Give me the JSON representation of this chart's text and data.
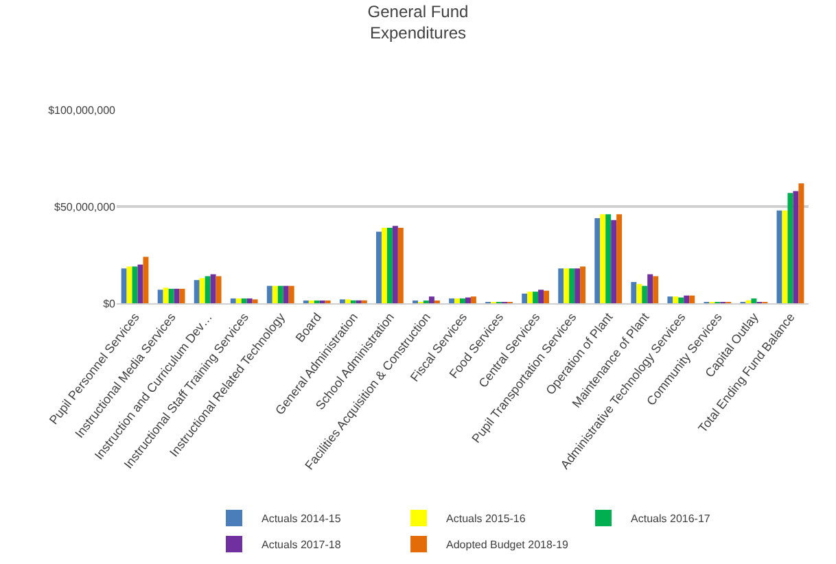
{
  "chart_data": {
    "type": "bar",
    "title": "General Fund\nExpenditures",
    "categories": [
      "Pupil Personnel Services",
      "Instructional Media Services",
      "Instruction and Curriculum Dev…",
      "Instructional Staff Training Services",
      "Instructional Related Technology",
      "Board",
      "General Administration",
      "School Administration",
      "Facilities Acquisition & Construction",
      "Fiscal Services",
      "Food Services",
      "Central Services",
      "Pupil Transportation Services",
      "Operation of Plant",
      "Maintenance of Plant",
      "Administrative Technology Services",
      "Community Services",
      "Capital Outlay",
      "Total Ending Fund Balance"
    ],
    "series": [
      {
        "name": "Actuals 2014-15",
        "color": "#4a7ebb",
        "values": [
          18000000,
          7000000,
          12000000,
          2500000,
          9000000,
          1000000,
          2000000,
          37000000,
          1000000,
          2500000,
          500000,
          5000000,
          18000000,
          44000000,
          11000000,
          3500000,
          500000,
          500000,
          48000000
        ]
      },
      {
        "name": "Actuals 2015-16",
        "color": "#ffff00",
        "values": [
          19000000,
          8000000,
          13000000,
          2500000,
          9000000,
          1000000,
          2000000,
          39000000,
          500000,
          2500000,
          500000,
          6000000,
          18000000,
          46000000,
          10000000,
          3500000,
          500000,
          1500000,
          48000000
        ]
      },
      {
        "name": "Actuals 2016-17",
        "color": "#00b050",
        "values": [
          19000000,
          7500000,
          14000000,
          2500000,
          9000000,
          1000000,
          1500000,
          39000000,
          1000000,
          2500000,
          500000,
          6000000,
          18000000,
          46000000,
          9000000,
          3000000,
          500000,
          2500000,
          57000000
        ]
      },
      {
        "name": "Actuals 2017-18",
        "color": "#7030a0",
        "values": [
          20000000,
          7500000,
          15000000,
          2500000,
          9000000,
          1000000,
          1500000,
          40000000,
          3500000,
          3000000,
          500000,
          7000000,
          18000000,
          43000000,
          15000000,
          4000000,
          500000,
          300000,
          58000000
        ]
      },
      {
        "name": "Adopted Budget 2018-19",
        "color": "#e36c09",
        "values": [
          24000000,
          7500000,
          14000000,
          2000000,
          9000000,
          1200000,
          1500000,
          39000000,
          1000000,
          3500000,
          500000,
          6500000,
          19000000,
          46000000,
          14000000,
          4000000,
          500000,
          300000,
          62000000
        ]
      }
    ],
    "ylim": [
      0,
      100000000
    ],
    "yticks": [
      {
        "value": 0,
        "label": "$0"
      },
      {
        "value": 50000000,
        "label": "$50,000,000"
      },
      {
        "value": 100000000,
        "label": "$100,000,000"
      }
    ],
    "grid": "y",
    "legend": "bottom"
  }
}
